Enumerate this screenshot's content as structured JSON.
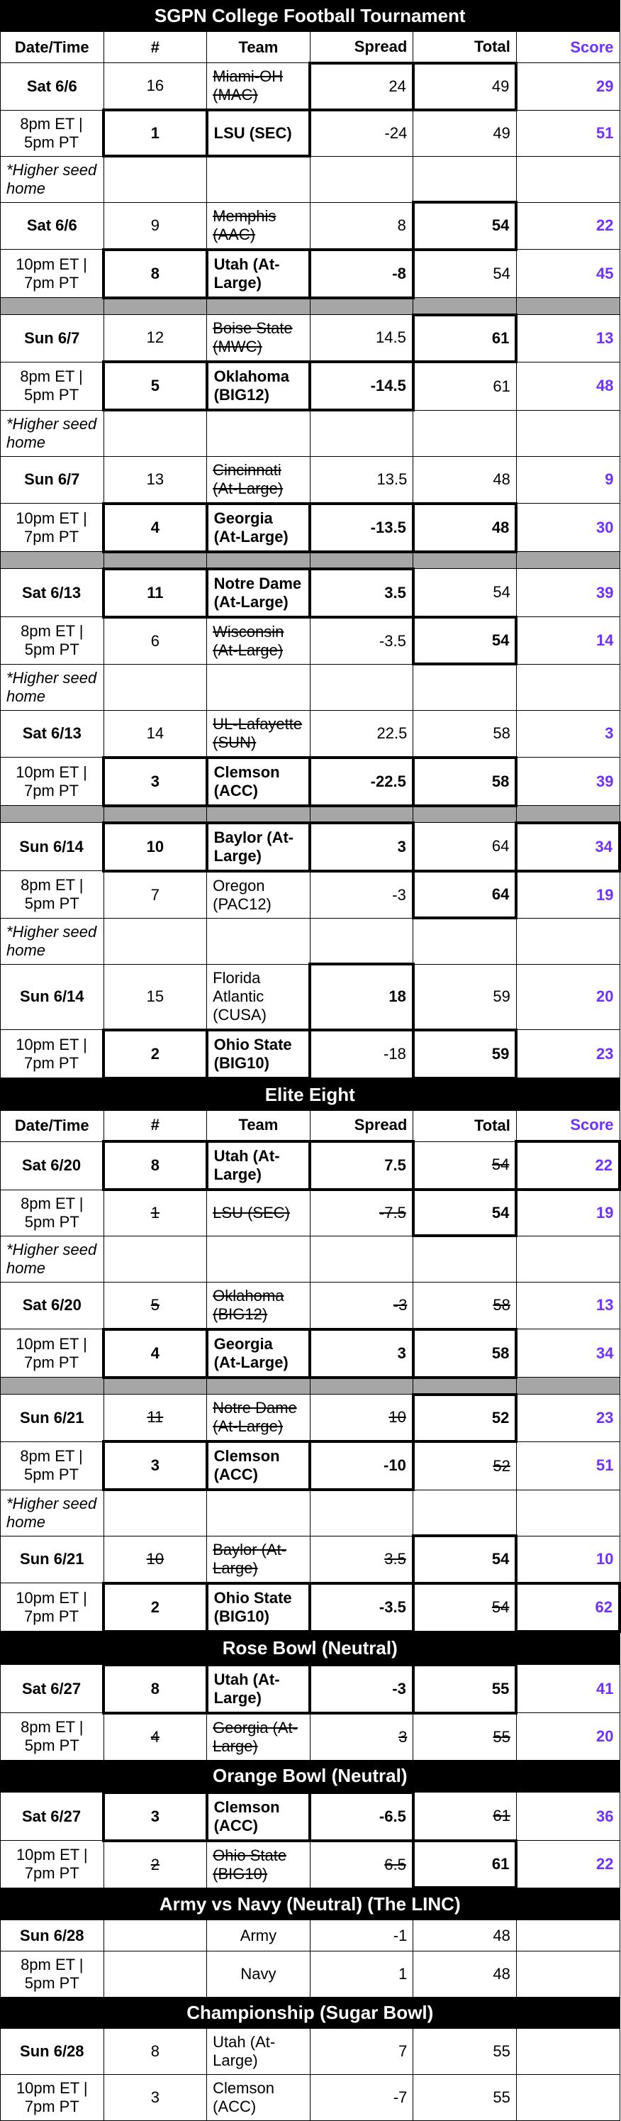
{
  "colors": {
    "score": "#7030ff",
    "gray": "#a6a6a6"
  },
  "columnHeaders": {
    "date": "Date/Time",
    "seed": "#",
    "team": "Team",
    "spread": "Spread",
    "total": "Total",
    "score": "Score"
  },
  "sections": [
    {
      "title": "SGPN College Football Tournament",
      "showHeaders": true,
      "groups": [
        {
          "games": [
            {
              "date": "Sat 6/6",
              "time": "8pm ET | 5pm PT",
              "r1": {
                "seed": "16",
                "team": "Miami-OH (MAC)",
                "spread": "24",
                "total": "49",
                "score": "29",
                "strike": [
                  "team"
                ],
                "boxes": [
                  "spread",
                  "total"
                ]
              },
              "r2": {
                "seed": "1",
                "team": "LSU (SEC)",
                "spread": "-24",
                "total": "49",
                "score": "51",
                "boxes": [
                  "seed",
                  "team"
                ],
                "boldSeed": true,
                "boldTeam": true
              }
            },
            {
              "date": "Sat 6/6",
              "time": "10pm ET | 7pm PT",
              "note": "*Higher seed home",
              "r1": {
                "seed": "9",
                "team": "Memphis (AAC)",
                "spread": "8",
                "total": "54",
                "score": "22",
                "strike": [
                  "team"
                ],
                "boxes": [
                  "total"
                ],
                "boldTotal": true
              },
              "r2": {
                "seed": "8",
                "team": "Utah (At-Large)",
                "spread": "-8",
                "total": "54",
                "score": "45",
                "boxes": [
                  "seed",
                  "team",
                  "spread"
                ],
                "boldSeed": true,
                "boldTeam": true,
                "boldSpread": true
              }
            }
          ],
          "sep": true
        },
        {
          "games": [
            {
              "date": "Sun 6/7",
              "time": "8pm ET | 5pm PT",
              "r1": {
                "seed": "12",
                "team": "Boise State (MWC)",
                "spread": "14.5",
                "total": "61",
                "score": "13",
                "strike": [
                  "team"
                ],
                "boxes": [
                  "total"
                ],
                "boldTotal": true
              },
              "r2": {
                "seed": "5",
                "team": "Oklahoma (BIG12)",
                "spread": "-14.5",
                "total": "61",
                "score": "48",
                "boxes": [
                  "seed",
                  "team",
                  "spread"
                ],
                "boldSeed": true,
                "boldTeam": true,
                "boldSpread": true
              }
            },
            {
              "date": "Sun 6/7",
              "time": "10pm ET | 7pm PT",
              "note": "*Higher seed home",
              "r1": {
                "seed": "13",
                "team": "Cincinnati (At-Large)",
                "spread": "13.5",
                "total": "48",
                "score": "9",
                "strike": [
                  "team"
                ]
              },
              "r2": {
                "seed": "4",
                "team": "Georgia (At-Large)",
                "spread": "-13.5",
                "total": "48",
                "score": "30",
                "boxes": [
                  "seed",
                  "team",
                  "spread",
                  "total"
                ],
                "boldSeed": true,
                "boldTeam": true,
                "boldSpread": true,
                "boldTotal": true
              }
            }
          ],
          "sep": true
        },
        {
          "games": [
            {
              "date": "Sat 6/13",
              "time": "8pm ET | 5pm PT",
              "r1": {
                "seed": "11",
                "team": "Notre Dame (At-Large)",
                "spread": "3.5",
                "total": "54",
                "score": "39",
                "boxes": [
                  "seed",
                  "team",
                  "spread"
                ],
                "boldSeed": true,
                "boldTeam": true,
                "boldSpread": true
              },
              "r2": {
                "seed": "6",
                "team": "Wisconsin (At-Large)",
                "spread": "-3.5",
                "total": "54",
                "score": "14",
                "strike": [
                  "team"
                ],
                "boxes": [
                  "total"
                ],
                "boldTotal": true
              }
            },
            {
              "date": "Sat 6/13",
              "time": "10pm ET | 7pm PT",
              "note": "*Higher seed home",
              "r1": {
                "seed": "14",
                "team": "UL-Lafayette (SUN)",
                "spread": "22.5",
                "total": "58",
                "score": "3",
                "strike": [
                  "team"
                ]
              },
              "r2": {
                "seed": "3",
                "team": "Clemson (ACC)",
                "spread": "-22.5",
                "total": "58",
                "score": "39",
                "boxes": [
                  "seed",
                  "team",
                  "spread",
                  "total"
                ],
                "boldSeed": true,
                "boldTeam": true,
                "boldSpread": true,
                "boldTotal": true
              }
            }
          ],
          "sep": true
        },
        {
          "games": [
            {
              "date": "Sun 6/14",
              "time": "8pm ET | 5pm PT",
              "r1": {
                "seed": "10",
                "team": "Baylor (At-Large)",
                "spread": "3",
                "total": "64",
                "score": "34",
                "boxes": [
                  "seed",
                  "team",
                  "spread",
                  "score"
                ],
                "boldSeed": true,
                "boldTeam": true,
                "boldSpread": true
              },
              "r2": {
                "seed": "7",
                "team": "Oregon (PAC12)",
                "spread": "-3",
                "total": "64",
                "score": "19",
                "boxes": [
                  "total"
                ],
                "boldTotal": true
              }
            },
            {
              "date": "Sun 6/14",
              "time": "10pm ET | 7pm PT",
              "note": "*Higher seed home",
              "r1": {
                "seed": "15",
                "team": "Florida Atlantic (CUSA)",
                "spread": "18",
                "total": "59",
                "score": "20",
                "boxes": [
                  "spread"
                ],
                "boldSpread": true
              },
              "r2": {
                "seed": "2",
                "team": "Ohio State (BIG10)",
                "spread": "-18",
                "total": "59",
                "score": "23",
                "boxes": [
                  "seed",
                  "team",
                  "total"
                ],
                "boldSeed": true,
                "boldTeam": true,
                "boldTotal": true
              }
            }
          ]
        }
      ]
    },
    {
      "title": "Elite Eight",
      "showHeaders": true,
      "groups": [
        {
          "games": [
            {
              "date": "Sat 6/20",
              "time": "8pm ET | 5pm PT",
              "r1": {
                "seed": "8",
                "team": "Utah (At-Large)",
                "spread": "7.5",
                "total": "54",
                "score": "22",
                "boxes": [
                  "seed",
                  "team",
                  "spread",
                  "score"
                ],
                "strike": [
                  "total"
                ],
                "boldSeed": true,
                "boldTeam": true,
                "boldSpread": true
              },
              "r2": {
                "seed": "1",
                "team": "LSU (SEC)",
                "spread": "-7.5",
                "total": "54",
                "score": "19",
                "strike": [
                  "seed",
                  "team",
                  "spread"
                ],
                "boxes": [
                  "total"
                ],
                "boldTotal": true
              }
            },
            {
              "date": "Sat 6/20",
              "time": "10pm ET | 7pm PT",
              "note": "*Higher seed home",
              "r1": {
                "seed": "5",
                "team": "Oklahoma (BIG12)",
                "spread": "-3",
                "total": "58",
                "score": "13",
                "strike": [
                  "seed",
                  "team",
                  "spread",
                  "total"
                ]
              },
              "r2": {
                "seed": "4",
                "team": "Georgia (At-Large)",
                "spread": "3",
                "total": "58",
                "score": "34",
                "boxes": [
                  "seed",
                  "team",
                  "spread",
                  "total"
                ],
                "boldSeed": true,
                "boldTeam": true,
                "boldSpread": true,
                "boldTotal": true
              }
            }
          ],
          "sep": true
        },
        {
          "games": [
            {
              "date": "Sun 6/21",
              "time": "8pm ET | 5pm PT",
              "r1": {
                "seed": "11",
                "team": "Notre Dame (At-Large)",
                "spread": "10",
                "total": "52",
                "score": "23",
                "strike": [
                  "seed",
                  "team",
                  "spread"
                ],
                "boxes": [
                  "total"
                ],
                "boldTotal": true
              },
              "r2": {
                "seed": "3",
                "team": "Clemson (ACC)",
                "spread": "-10",
                "total": "52",
                "score": "51",
                "boxes": [
                  "seed",
                  "team",
                  "spread"
                ],
                "strike": [
                  "total"
                ],
                "boldSeed": true,
                "boldTeam": true,
                "boldSpread": true
              }
            },
            {
              "date": "Sun 6/21",
              "time": "10pm ET | 7pm PT",
              "note": "*Higher seed home",
              "r1": {
                "seed": "10",
                "team": "Baylor (At-Large)",
                "spread": "3.5",
                "total": "54",
                "score": "10",
                "strike": [
                  "seed",
                  "team",
                  "spread"
                ],
                "boxes": [
                  "total"
                ],
                "boldTotal": true
              },
              "r2": {
                "seed": "2",
                "team": "Ohio State (BIG10)",
                "spread": "-3.5",
                "total": "54",
                "score": "62",
                "boxes": [
                  "seed",
                  "team",
                  "spread",
                  "score"
                ],
                "strike": [
                  "total"
                ],
                "boldSeed": true,
                "boldTeam": true,
                "boldSpread": true
              }
            }
          ]
        }
      ]
    },
    {
      "title": "Rose Bowl (Neutral)",
      "showHeaders": false,
      "groups": [
        {
          "games": [
            {
              "date": "Sat 6/27",
              "time": "8pm ET | 5pm PT",
              "r1": {
                "seed": "8",
                "team": "Utah (At-Large)",
                "spread": "-3",
                "total": "55",
                "score": "41",
                "boxes": [
                  "seed",
                  "team",
                  "spread",
                  "total"
                ],
                "boldSeed": true,
                "boldTeam": true,
                "boldSpread": true,
                "boldTotal": true
              },
              "r2": {
                "seed": "4",
                "team": "Georgia (At-Large)",
                "spread": "3",
                "total": "55",
                "score": "20",
                "strike": [
                  "seed",
                  "team",
                  "spread",
                  "total"
                ]
              }
            }
          ]
        }
      ]
    },
    {
      "title": "Orange Bowl (Neutral)",
      "showHeaders": false,
      "groups": [
        {
          "games": [
            {
              "date": "Sat 6/27",
              "time": "10pm ET | 7pm PT",
              "r1": {
                "seed": "3",
                "team": "Clemson (ACC)",
                "spread": "-6.5",
                "total": "61",
                "score": "36",
                "boxes": [
                  "seed",
                  "team",
                  "spread"
                ],
                "strike": [
                  "total"
                ],
                "boldSeed": true,
                "boldTeam": true,
                "boldSpread": true
              },
              "r2": {
                "seed": "2",
                "team": "Ohio State (BIG10)",
                "spread": "6.5",
                "total": "61",
                "score": "22",
                "strike": [
                  "seed",
                  "team",
                  "spread"
                ],
                "boxes": [
                  "total"
                ],
                "boldTotal": true
              }
            }
          ]
        }
      ]
    },
    {
      "title": "Army vs Navy (Neutral) (The LINC)",
      "showHeaders": false,
      "groups": [
        {
          "games": [
            {
              "date": "Sun 6/28",
              "time": "8pm ET | 5pm PT",
              "r1": {
                "seed": "",
                "team": "Army",
                "spread": "-1",
                "total": "48",
                "score": "",
                "centerTeam": true
              },
              "r2": {
                "seed": "",
                "team": "Navy",
                "spread": "1",
                "total": "48",
                "score": "",
                "centerTeam": true
              }
            }
          ]
        }
      ]
    },
    {
      "title": "Championship (Sugar Bowl)",
      "showHeaders": false,
      "groups": [
        {
          "games": [
            {
              "date": "Sun 6/28",
              "time": "10pm ET | 7pm PT",
              "r1": {
                "seed": "8",
                "team": "Utah (At-Large)",
                "spread": "7",
                "total": "55",
                "score": ""
              },
              "r2": {
                "seed": "3",
                "team": "Clemson (ACC)",
                "spread": "-7",
                "total": "55",
                "score": ""
              }
            }
          ]
        }
      ]
    }
  ]
}
